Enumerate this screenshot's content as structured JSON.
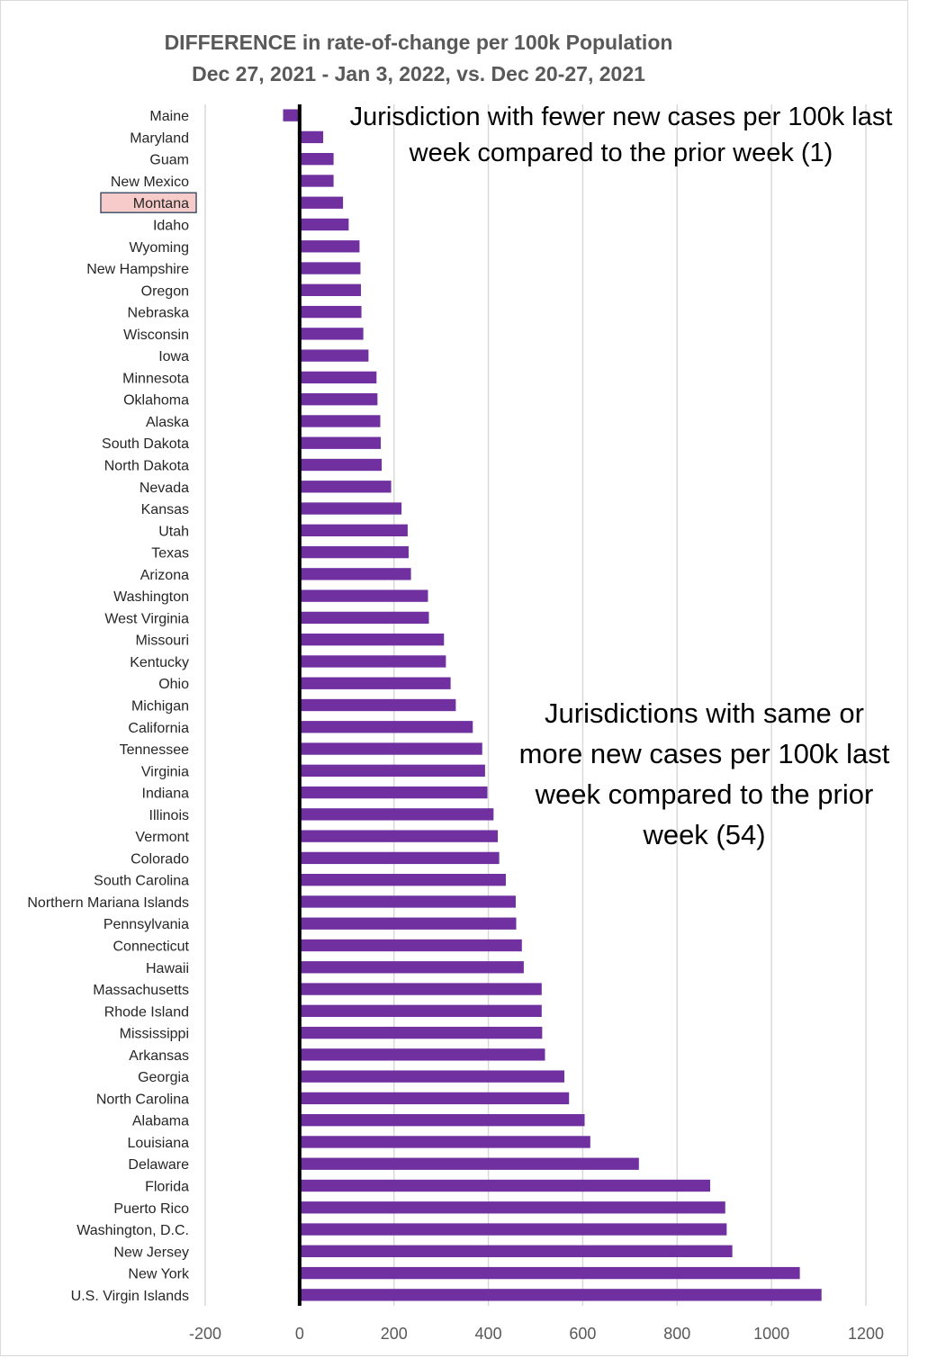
{
  "chart_data": {
    "type": "bar",
    "orientation": "horizontal",
    "title": "DIFFERENCE in rate-of-change per 100k Population",
    "subtitle": "Dec 27, 2021 - Jan 3, 2022, vs. Dec 20-27, 2021",
    "xlabel": "",
    "ylabel": "",
    "xlim": [
      -200,
      1200
    ],
    "xticks": [
      -200,
      0,
      200,
      400,
      600,
      800,
      1000,
      1200
    ],
    "grid": true,
    "bar_color": "#7030a0",
    "highlight_color": "#f8cbcb",
    "highlighted_category": "Montana",
    "categories": [
      "Maine",
      "Maryland",
      "Guam",
      "New Mexico",
      "Montana",
      "Idaho",
      "Wyoming",
      "New Hampshire",
      "Oregon",
      "Nebraska",
      "Wisconsin",
      "Iowa",
      "Minnesota",
      "Oklahoma",
      "Alaska",
      "South Dakota",
      "North Dakota",
      "Nevada",
      "Kansas",
      "Utah",
      "Texas",
      "Arizona",
      "Washington",
      "West Virginia",
      "Missouri",
      "Kentucky",
      "Ohio",
      "Michigan",
      "California",
      "Tennessee",
      "Virginia",
      "Indiana",
      "Illinois",
      "Vermont",
      "Colorado",
      "South Carolina",
      "Northern Mariana Islands",
      "Pennsylvania",
      "Connecticut",
      "Hawaii",
      "Massachusetts",
      "Rhode Island",
      "Mississippi",
      "Arkansas",
      "Georgia",
      "North Carolina",
      "Alabama",
      "Louisiana",
      "Delaware",
      "Florida",
      "Puerto Rico",
      "Washington, D.C.",
      "New Jersey",
      "New York",
      "U.S. Virgin Islands"
    ],
    "values": [
      -35,
      50,
      72,
      72,
      92,
      104,
      127,
      129,
      130,
      131,
      135,
      146,
      163,
      165,
      171,
      172,
      174,
      194,
      216,
      229,
      231,
      236,
      272,
      274,
      306,
      310,
      320,
      331,
      367,
      387,
      393,
      398,
      411,
      420,
      423,
      437,
      458,
      459,
      471,
      475,
      513,
      513,
      514,
      520,
      561,
      571,
      604,
      616,
      719,
      870,
      902,
      905,
      917,
      1060,
      1106
    ],
    "annotations": [
      "Jurisdiction with fewer new cases per 100k last week compared to the prior week (1)",
      "Jurisdictions with same or more new cases per 100k last week compared to the prior week (54)"
    ]
  }
}
